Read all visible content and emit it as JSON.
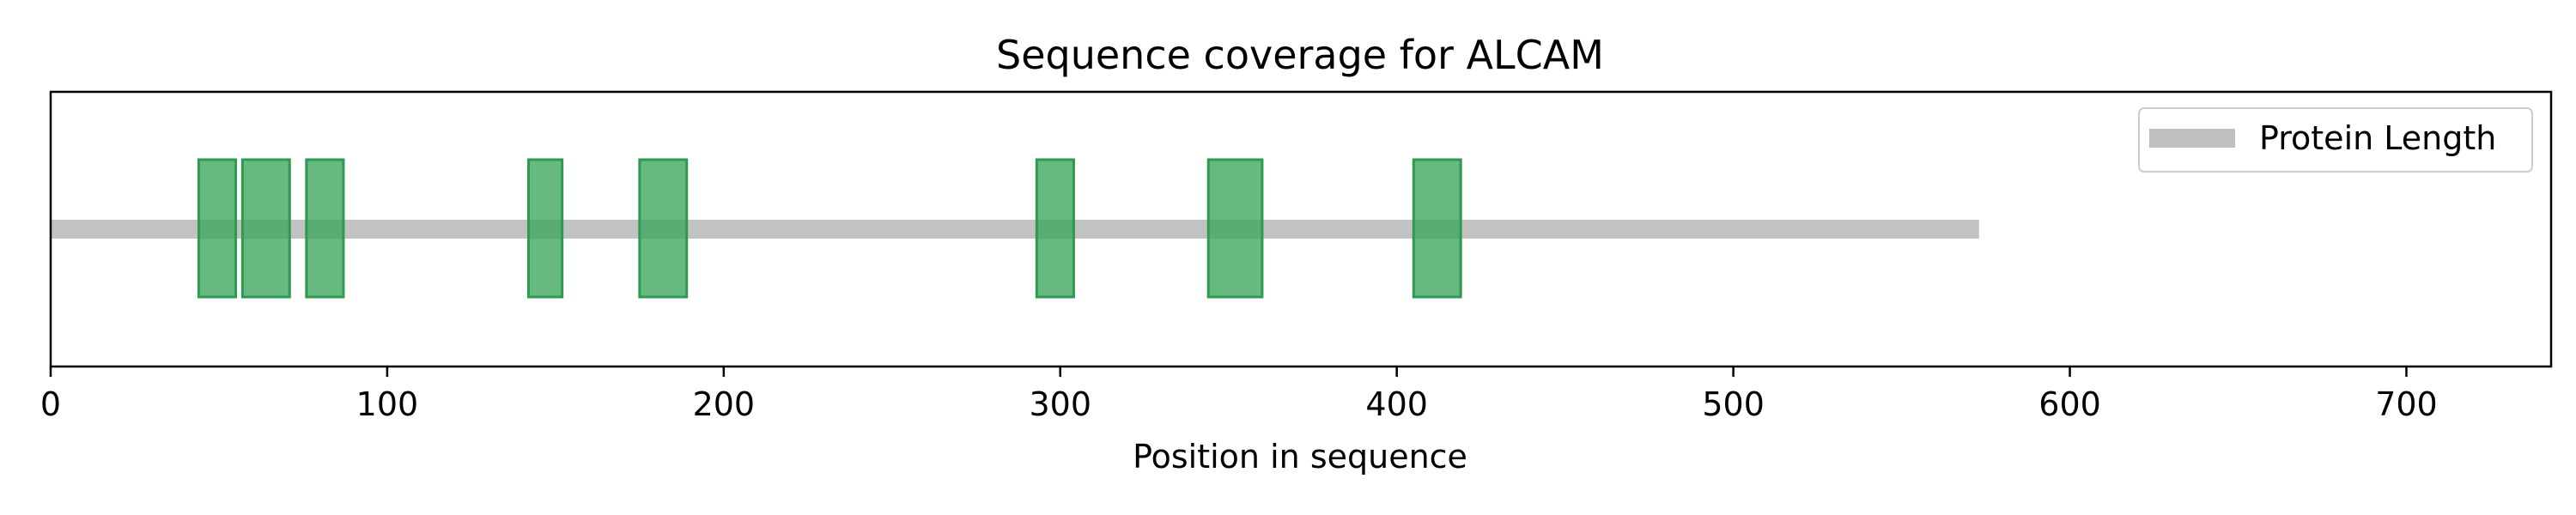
{
  "chart_data": {
    "type": "bar",
    "title": "Sequence coverage for ALCAM",
    "xlabel": "Position in sequence",
    "ylabel": "",
    "xlim": [
      0,
      743
    ],
    "xticks": [
      0,
      100,
      200,
      300,
      400,
      500,
      600,
      700
    ],
    "grid": false,
    "legend": {
      "placement": "upper-right",
      "entries": [
        {
          "label": "Protein Length",
          "color": "#bfbfbf"
        }
      ]
    },
    "protein_length": 573,
    "coverage_segments": [
      {
        "start": 44,
        "end": 55
      },
      {
        "start": 57,
        "end": 71
      },
      {
        "start": 76,
        "end": 87
      },
      {
        "start": 142,
        "end": 152
      },
      {
        "start": 175,
        "end": 189
      },
      {
        "start": 293,
        "end": 304
      },
      {
        "start": 344,
        "end": 360
      },
      {
        "start": 405,
        "end": 419
      }
    ],
    "colors": {
      "coverage_fill": "#3ba55d",
      "coverage_edge": "#2e9a50",
      "protein_line": "#bfbfbf",
      "axis": "#000000"
    }
  }
}
